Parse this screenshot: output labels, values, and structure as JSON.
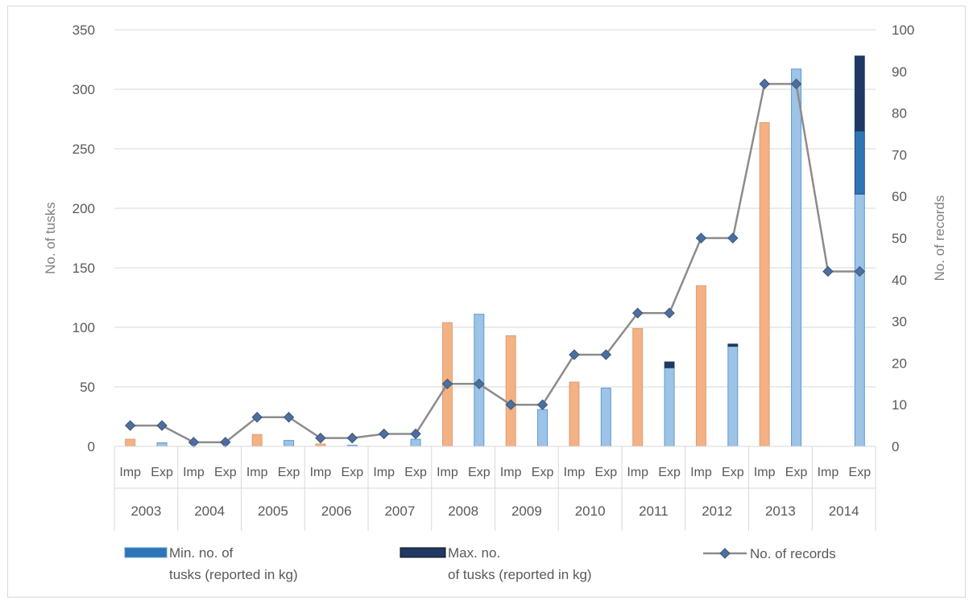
{
  "chart_data": {
    "type": "bar",
    "years": [
      "2003",
      "2004",
      "2005",
      "2006",
      "2007",
      "2008",
      "2009",
      "2010",
      "2011",
      "2012",
      "2013",
      "2014"
    ],
    "sub_categories": [
      "Imp",
      "Exp"
    ],
    "y_left": {
      "label": "No. of tusks",
      "ticks": [
        0,
        50,
        100,
        150,
        200,
        250,
        300,
        350
      ],
      "ylim": [
        0,
        350
      ]
    },
    "y_right": {
      "label": "No. of records",
      "ticks": [
        0,
        10,
        20,
        30,
        40,
        50,
        60,
        70,
        80,
        90,
        100
      ],
      "ylim": [
        0,
        100
      ]
    },
    "bars": [
      {
        "year": "2003",
        "imp": 6,
        "exp": 3
      },
      {
        "year": "2004",
        "imp": 0,
        "exp": 0
      },
      {
        "year": "2005",
        "imp": 10,
        "exp": 5
      },
      {
        "year": "2006",
        "imp": 2,
        "exp": 1
      },
      {
        "year": "2007",
        "imp": 0,
        "exp": 6
      },
      {
        "year": "2008",
        "imp": 104,
        "exp": 111
      },
      {
        "year": "2009",
        "imp": 93,
        "exp": 31
      },
      {
        "year": "2010",
        "imp": 54,
        "exp": 49
      },
      {
        "year": "2011",
        "imp": 99,
        "exp": 66
      },
      {
        "year": "2012",
        "imp": 135,
        "exp": 84
      },
      {
        "year": "2013",
        "imp": 272,
        "exp": 317
      },
      {
        "year": "2014",
        "imp": 0,
        "exp": 212
      }
    ],
    "min_kg_stack": [
      {
        "year": "2014",
        "side": "Exp",
        "from": 212,
        "to": 265
      }
    ],
    "max_kg_stack": [
      {
        "year": "2011",
        "side": "Exp",
        "from": 66,
        "to": 71
      },
      {
        "year": "2012",
        "side": "Exp",
        "from": 84,
        "to": 86
      },
      {
        "year": "2014",
        "side": "Exp",
        "from": 265,
        "to": 328
      }
    ],
    "records": [
      5,
      5,
      1,
      1,
      7,
      7,
      2,
      2,
      3,
      3,
      15,
      15,
      10,
      10,
      22,
      22,
      32,
      32,
      50,
      50,
      87,
      87,
      42,
      42
    ],
    "colors": {
      "imp": "#f4b183",
      "exp": "#9dc3e6",
      "exp_border": "#5b9bd5",
      "min_kg": "#2e75b6",
      "max_kg": "#1f3864",
      "line": "#8c8c8c",
      "marker": "#44546a",
      "grid": "#d9d9d9"
    },
    "legend": [
      {
        "key": "min",
        "line1": "Min. no. of",
        "line2": "tusks (reported in kg)"
      },
      {
        "key": "max",
        "line1": "Max. no.",
        "line2": "of tusks (reported in kg)"
      },
      {
        "key": "records",
        "line1": "No. of records",
        "line2": ""
      }
    ]
  }
}
